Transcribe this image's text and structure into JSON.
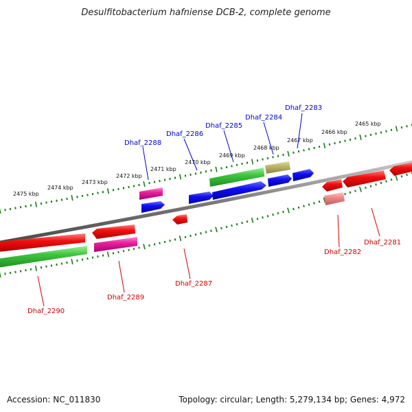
{
  "title": "Desulfitobacterium hafniense DCB-2, complete genome",
  "footer": {
    "accession": "Accession: NC_011830",
    "summary": "Topology: circular; Length: 5,279,134 bp; Genes: 4,972"
  },
  "ticks": [
    {
      "label": "2475 kbp"
    },
    {
      "label": "2474 kbp"
    },
    {
      "label": "2473 kbp"
    },
    {
      "label": "2472 kbp"
    },
    {
      "label": "2471 kbp"
    },
    {
      "label": "2470 kbp"
    },
    {
      "label": "2469 kbp"
    },
    {
      "label": "2468 kbp"
    },
    {
      "label": "2467 kbp"
    },
    {
      "label": "2466 kbp"
    },
    {
      "label": "2465 kbp"
    }
  ],
  "colors": {
    "backbone": "#8a8a8a",
    "forward_label": "#0000cc",
    "reverse_label": "#cc0000",
    "tick": "#1a7a1a",
    "leader": "#0000cc",
    "leader_reverse": "#cc0000"
  },
  "genes_top": [
    {
      "name": "Dhaf_2288"
    },
    {
      "name": "Dhaf_2286"
    },
    {
      "name": "Dhaf_2285"
    },
    {
      "name": "Dhaf_2284"
    },
    {
      "name": "Dhaf_2283"
    }
  ],
  "genes_bottom": [
    {
      "name": "Dhaf_2290"
    },
    {
      "name": "Dhaf_2289"
    },
    {
      "name": "Dhaf_2287"
    },
    {
      "name": "Dhaf_2282"
    },
    {
      "name": "Dhaf_2281"
    }
  ]
}
